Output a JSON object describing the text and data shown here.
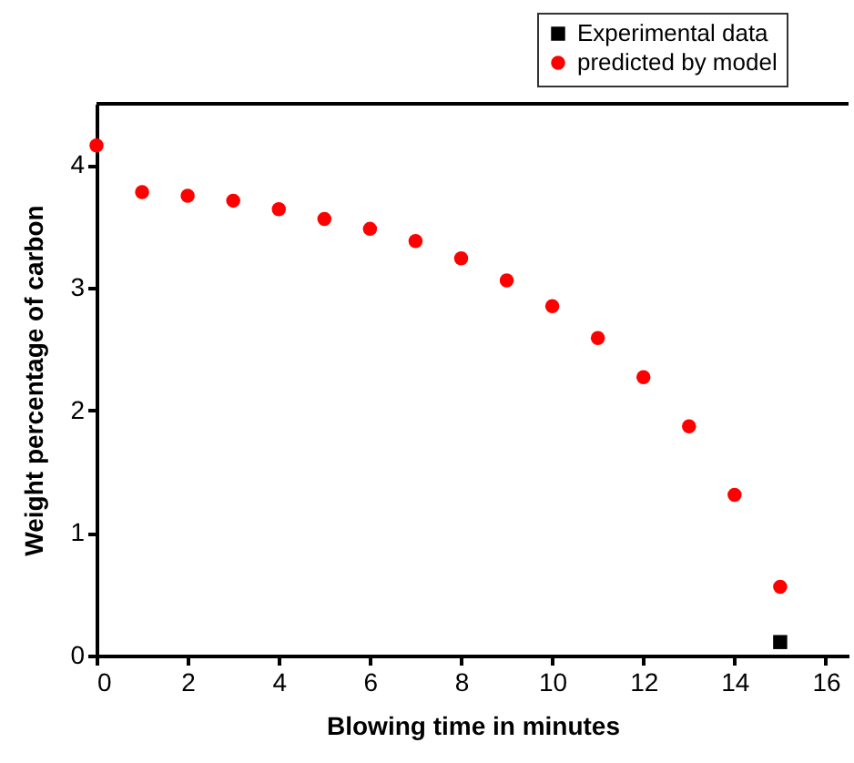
{
  "chart_data": {
    "type": "scatter",
    "xlabel": "Blowing time in minutes",
    "ylabel": "Weight percentage of carbon",
    "xlim": [
      0,
      16.5
    ],
    "ylim": [
      0,
      4.5
    ],
    "xticks": [
      0,
      2,
      4,
      6,
      8,
      10,
      12,
      14,
      16
    ],
    "yticks": [
      0,
      1,
      2,
      3,
      4
    ],
    "legend": "top right",
    "grid": false,
    "series": [
      {
        "name": "Experimental data",
        "color": "#000000",
        "marker": "square",
        "x": [
          15
        ],
        "values": [
          0.11
        ]
      },
      {
        "name": "predicted by model",
        "color": "#ff0000",
        "marker": "circle",
        "x": [
          0,
          1,
          2,
          3,
          4,
          5,
          6,
          7,
          8,
          9,
          10,
          11,
          12,
          13,
          14,
          15
        ],
        "values": [
          4.16,
          3.78,
          3.75,
          3.71,
          3.64,
          3.56,
          3.48,
          3.38,
          3.24,
          3.06,
          2.85,
          2.59,
          2.27,
          1.87,
          1.31,
          0.56
        ]
      }
    ]
  }
}
